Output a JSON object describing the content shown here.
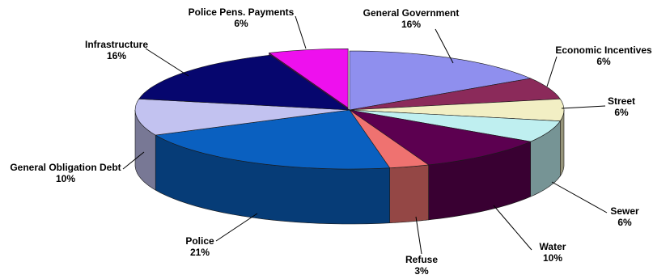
{
  "chart_data": {
    "type": "pie",
    "title": "",
    "slices": [
      {
        "label": "General Government",
        "value": 16,
        "pct_label": "16%",
        "color": "#8f8fee"
      },
      {
        "label": "Economic Incentives",
        "value": 6,
        "pct_label": "6%",
        "color": "#8b2a5a"
      },
      {
        "label": "Street",
        "value": 6,
        "pct_label": "6%",
        "color": "#f2efc4"
      },
      {
        "label": "Sewer",
        "value": 6,
        "pct_label": "6%",
        "color": "#bfeff0"
      },
      {
        "label": "Water",
        "value": 10,
        "pct_label": "10%",
        "color": "#5c0050"
      },
      {
        "label": "Refuse",
        "value": 3,
        "pct_label": "3%",
        "color": "#ef7270"
      },
      {
        "label": "Police",
        "value": 21,
        "pct_label": "21%",
        "color": "#0a60c0"
      },
      {
        "label": "General Obligation Debt",
        "value": 10,
        "pct_label": "10%",
        "color": "#c2c2f0"
      },
      {
        "label": "Infrastructure",
        "value": 16,
        "pct_label": "16%",
        "color": "#06066e"
      },
      {
        "label": "Police Pens. Payments",
        "value": 6,
        "pct_label": "6%",
        "color": "#ee10ee",
        "exploded": true
      }
    ],
    "start_angle_deg": 0,
    "direction": "clockwise",
    "legend": "none",
    "three_d": true
  }
}
